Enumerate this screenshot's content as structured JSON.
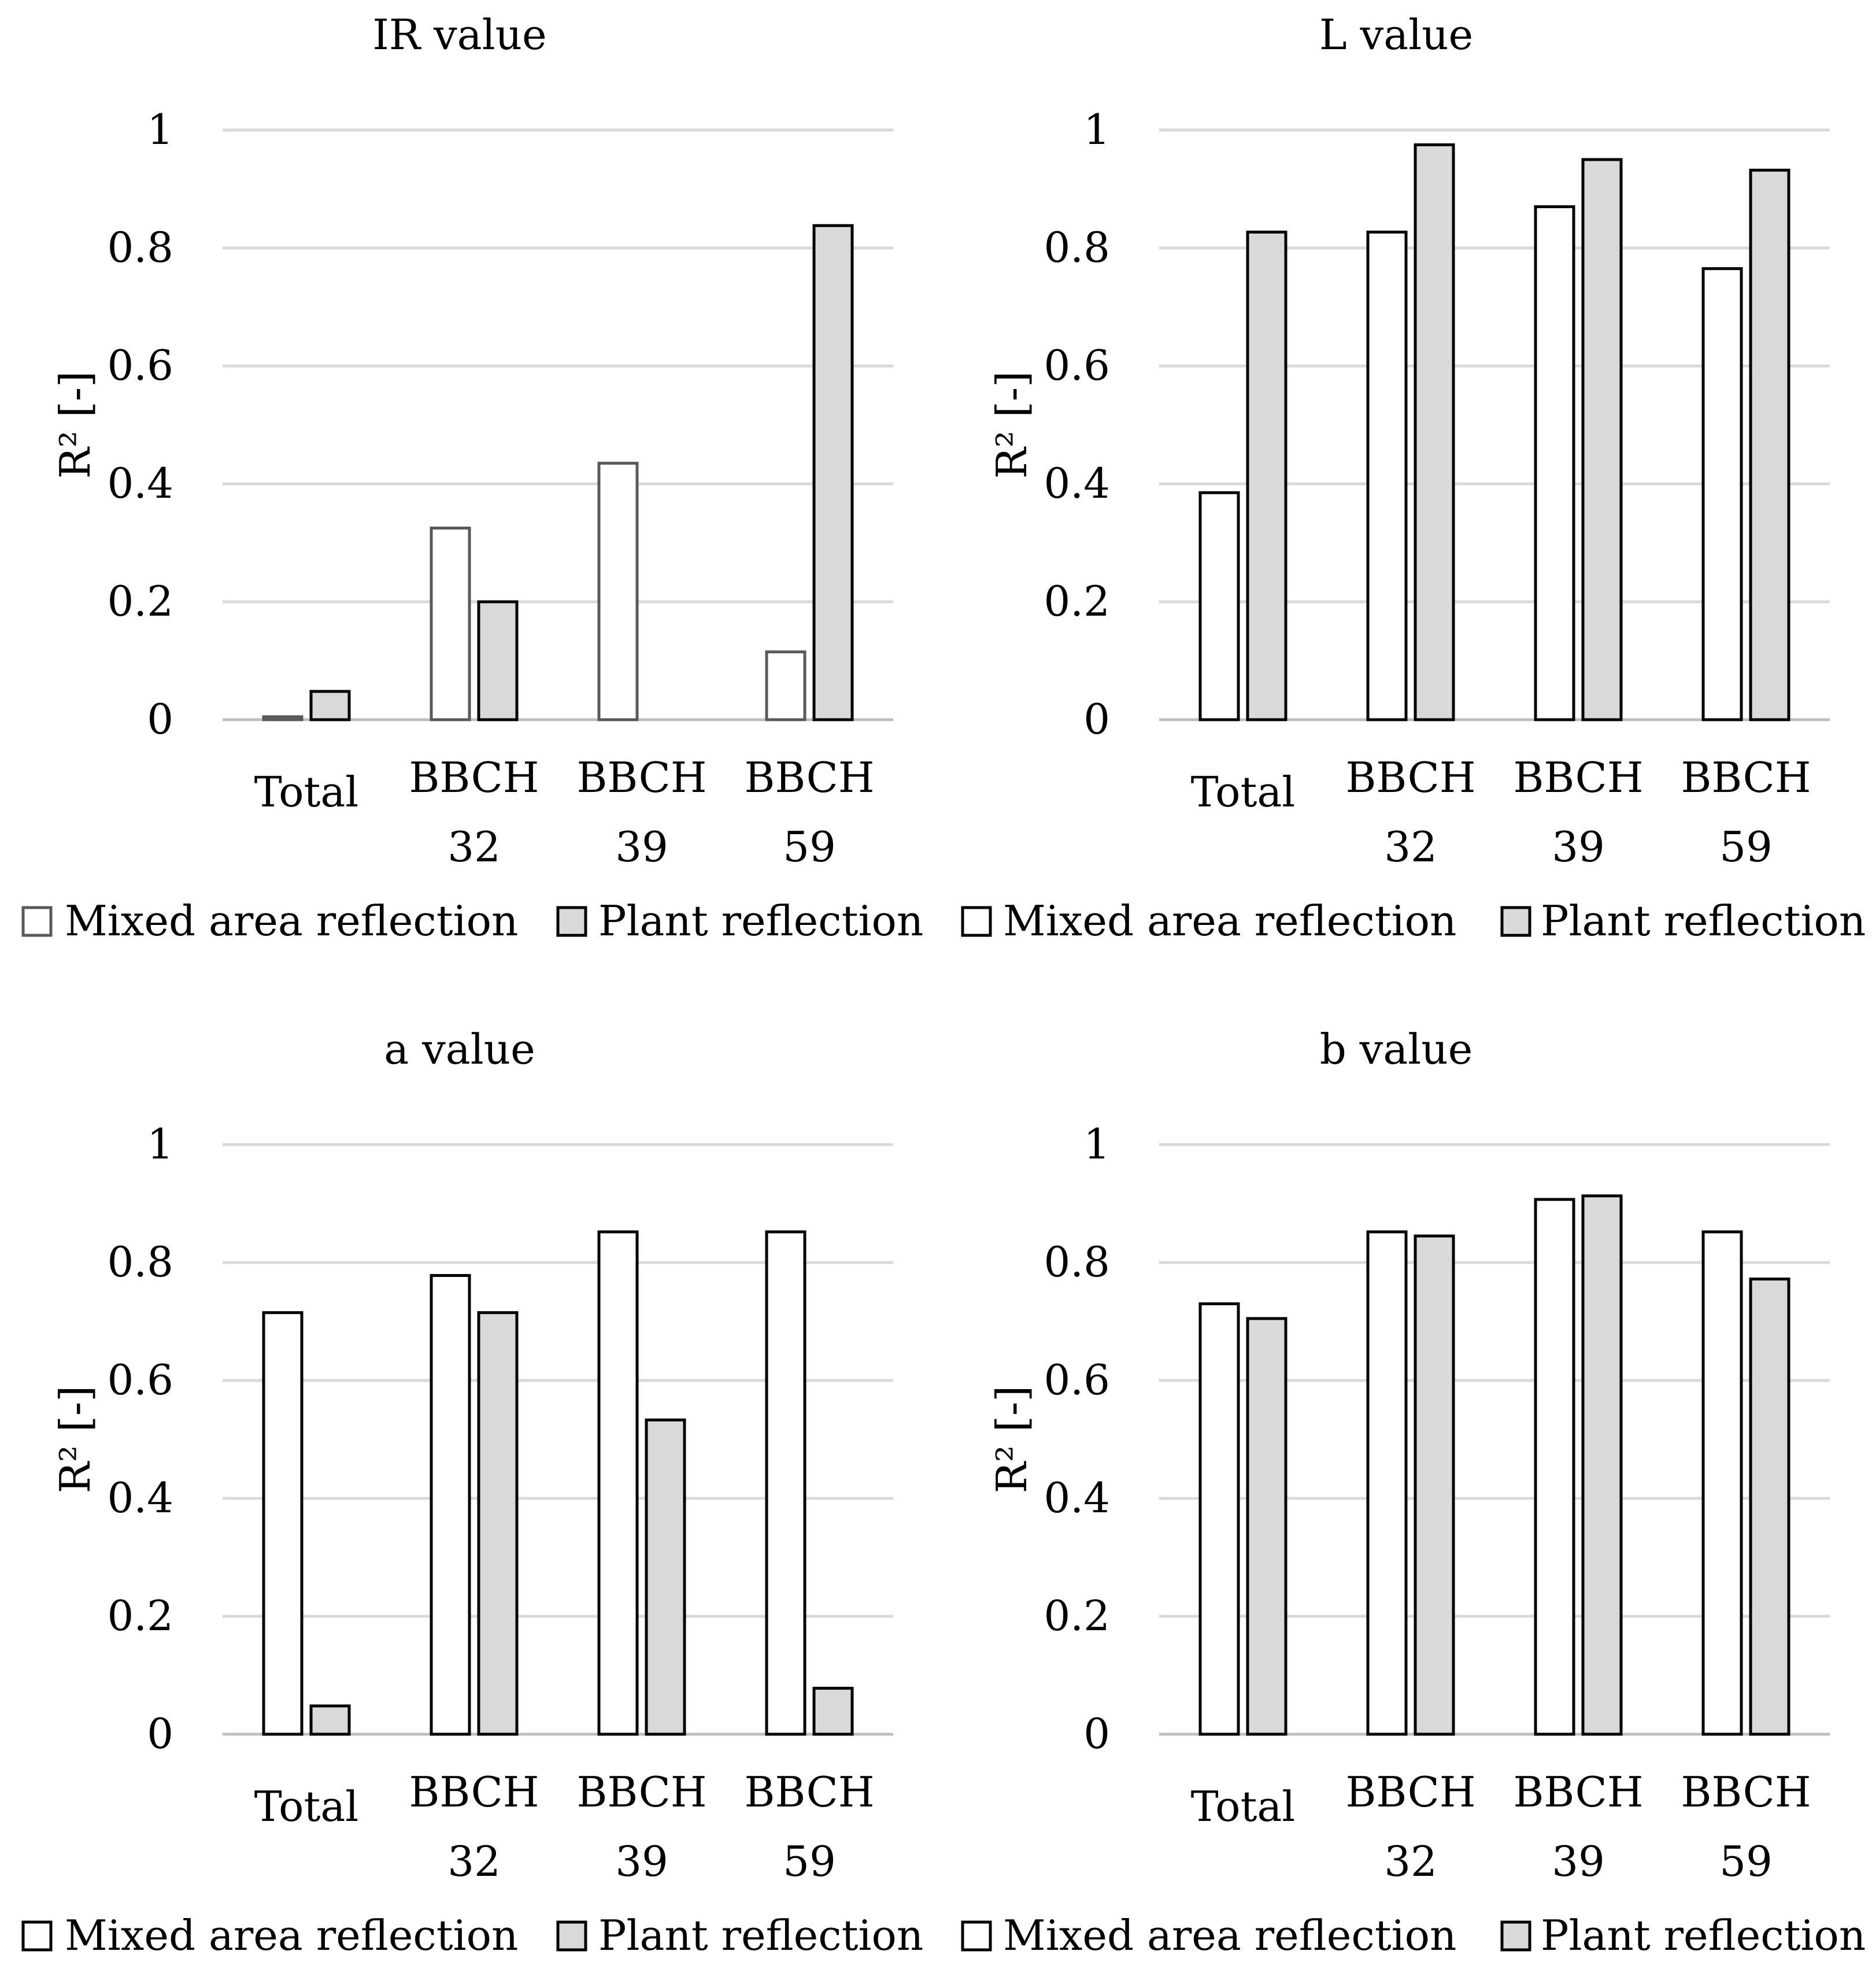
{
  "chart_data": [
    {
      "type": "bar",
      "title": "IR value",
      "ylabel": "R² [-]",
      "xlabel": "",
      "ylim": [
        0,
        1
      ],
      "yticks": [
        "0",
        "0.2",
        "0.4",
        "0.6",
        "0.8",
        "1"
      ],
      "categories": [
        [
          "Total"
        ],
        [
          "BBCH",
          "32"
        ],
        [
          "BBCH",
          "39"
        ],
        [
          "BBCH",
          "59"
        ]
      ],
      "grid": true,
      "legend": "bottom",
      "series": [
        {
          "name": "Mixed area reflection",
          "values": [
            0.005,
            0.325,
            0.435,
            0.115
          ],
          "fill": "#ffffff",
          "stroke": "#595959"
        },
        {
          "name": "Plant reflection",
          "values": [
            0.048,
            0.2,
            0,
            0.838
          ],
          "fill": "#d9d9d9",
          "stroke": "#000000"
        }
      ]
    },
    {
      "type": "bar",
      "title": "L value",
      "ylabel": "R² [-]",
      "xlabel": "",
      "ylim": [
        0,
        1
      ],
      "yticks": [
        "0",
        "0.2",
        "0.4",
        "0.6",
        "0.8",
        "1"
      ],
      "categories": [
        [
          "Total"
        ],
        [
          "BBCH",
          "32"
        ],
        [
          "BBCH",
          "39"
        ],
        [
          "BBCH",
          "59"
        ]
      ],
      "grid": true,
      "legend": "bottom",
      "series": [
        {
          "name": "Mixed area reflection",
          "values": [
            0.385,
            0.827,
            0.87,
            0.765
          ],
          "fill": "#ffffff",
          "stroke": "#000000"
        },
        {
          "name": "Plant reflection",
          "values": [
            0.827,
            0.975,
            0.95,
            0.932
          ],
          "fill": "#d9d9d9",
          "stroke": "#000000"
        }
      ]
    },
    {
      "type": "bar",
      "title": "a value",
      "ylabel": "R² [-]",
      "xlabel": "",
      "ylim": [
        0,
        1
      ],
      "yticks": [
        "0",
        "0.2",
        "0.4",
        "0.6",
        "0.8",
        "1"
      ],
      "categories": [
        [
          "Total"
        ],
        [
          "BBCH",
          "32"
        ],
        [
          "BBCH",
          "39"
        ],
        [
          "BBCH",
          "59"
        ]
      ],
      "grid": true,
      "legend": "bottom",
      "series": [
        {
          "name": "Mixed area reflection",
          "values": [
            0.715,
            0.778,
            0.852,
            0.852
          ],
          "fill": "#ffffff",
          "stroke": "#000000"
        },
        {
          "name": "Plant reflection",
          "values": [
            0.048,
            0.715,
            0.533,
            0.078
          ],
          "fill": "#d9d9d9",
          "stroke": "#000000"
        }
      ]
    },
    {
      "type": "bar",
      "title": "b value",
      "ylabel": "R² [-]",
      "xlabel": "",
      "ylim": [
        0,
        1
      ],
      "yticks": [
        "0",
        "0.2",
        "0.4",
        "0.6",
        "0.8",
        "1"
      ],
      "categories": [
        [
          "Total"
        ],
        [
          "BBCH",
          "32"
        ],
        [
          "BBCH",
          "39"
        ],
        [
          "BBCH",
          "59"
        ]
      ],
      "grid": true,
      "legend": "bottom",
      "series": [
        {
          "name": "Mixed area reflection",
          "values": [
            0.73,
            0.852,
            0.907,
            0.852
          ],
          "fill": "#ffffff",
          "stroke": "#000000"
        },
        {
          "name": "Plant reflection",
          "values": [
            0.705,
            0.845,
            0.913,
            0.772
          ],
          "fill": "#d9d9d9",
          "stroke": "#000000"
        }
      ]
    }
  ]
}
